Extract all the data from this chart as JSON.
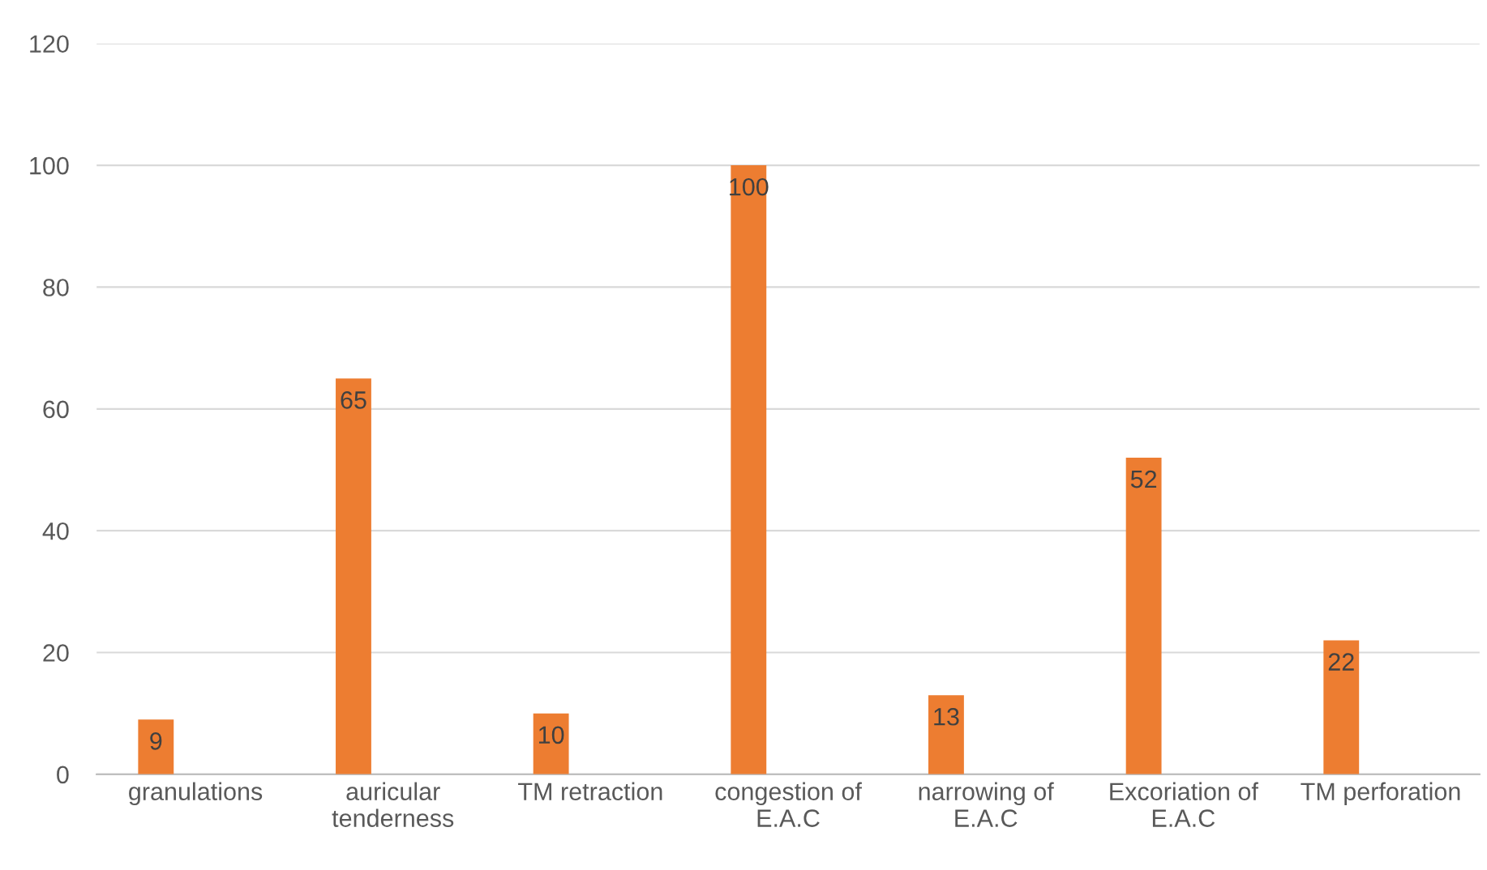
{
  "chart_data": {
    "type": "bar",
    "categories": [
      "granulations",
      "auricular\ntenderness",
      "TM retraction",
      "congestion of\nE.A.C",
      "narrowing of\nE.A.C",
      "Excoriation of\nE.A.C",
      "TM perforation"
    ],
    "values": [
      9,
      65,
      10,
      100,
      13,
      52,
      22
    ],
    "color": "#ed7d31",
    "ylim": [
      0,
      120
    ],
    "yticks": [
      0,
      20,
      40,
      60,
      80,
      100,
      120
    ],
    "grid": "y",
    "data_labels": true
  }
}
